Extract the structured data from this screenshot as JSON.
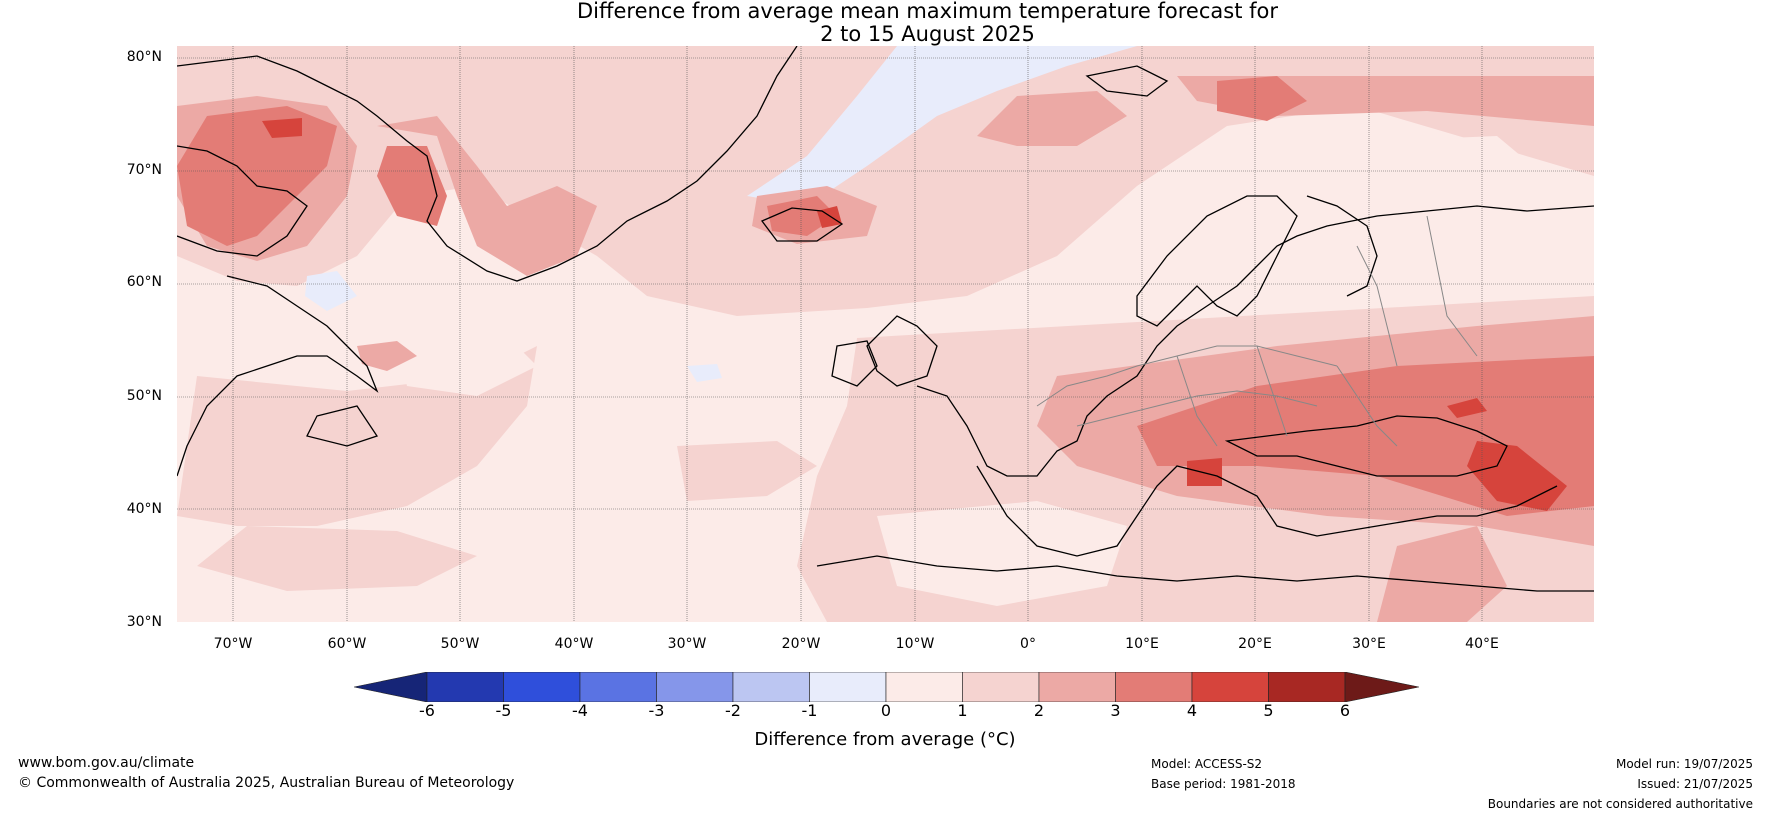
{
  "title": {
    "line1": "Difference from average mean maximum temperature forecast for",
    "line2": "2 to 15 August 2025"
  },
  "map": {
    "lat_labels": [
      "80°N",
      "70°N",
      "60°N",
      "50°N",
      "40°N",
      "30°N"
    ],
    "lon_labels": [
      "70°W",
      "60°W",
      "50°W",
      "40°W",
      "30°W",
      "20°W",
      "10°W",
      "0°",
      "10°E",
      "20°E",
      "30°E",
      "40°E"
    ]
  },
  "colorbar": {
    "title": "Difference from average (°C)",
    "ticks": [
      "-6",
      "-5",
      "-4",
      "-3",
      "-2",
      "-1",
      "0",
      "1",
      "2",
      "3",
      "4",
      "5",
      "6"
    ],
    "colors": [
      "#162577",
      "#2339b0",
      "#2f4fdb",
      "#5a73e3",
      "#8596ea",
      "#bcc6f2",
      "#e8ecfb",
      "#fcebe8",
      "#f5d3d0",
      "#eca9a5",
      "#e37c76",
      "#d6443c",
      "#a82823",
      "#6d1a18"
    ]
  },
  "footer": {
    "website": "www.bom.gov.au/climate",
    "copyright": "© Commonwealth of Australia 2025, Australian Bureau of Meteorology",
    "model": "Model: ACCESS-S2",
    "base_period": "Base period: 1981-2018",
    "model_run": "Model run: 19/07/2025",
    "issued": "Issued: 21/07/2025",
    "disclaimer": "Boundaries are not considered authoritative"
  }
}
